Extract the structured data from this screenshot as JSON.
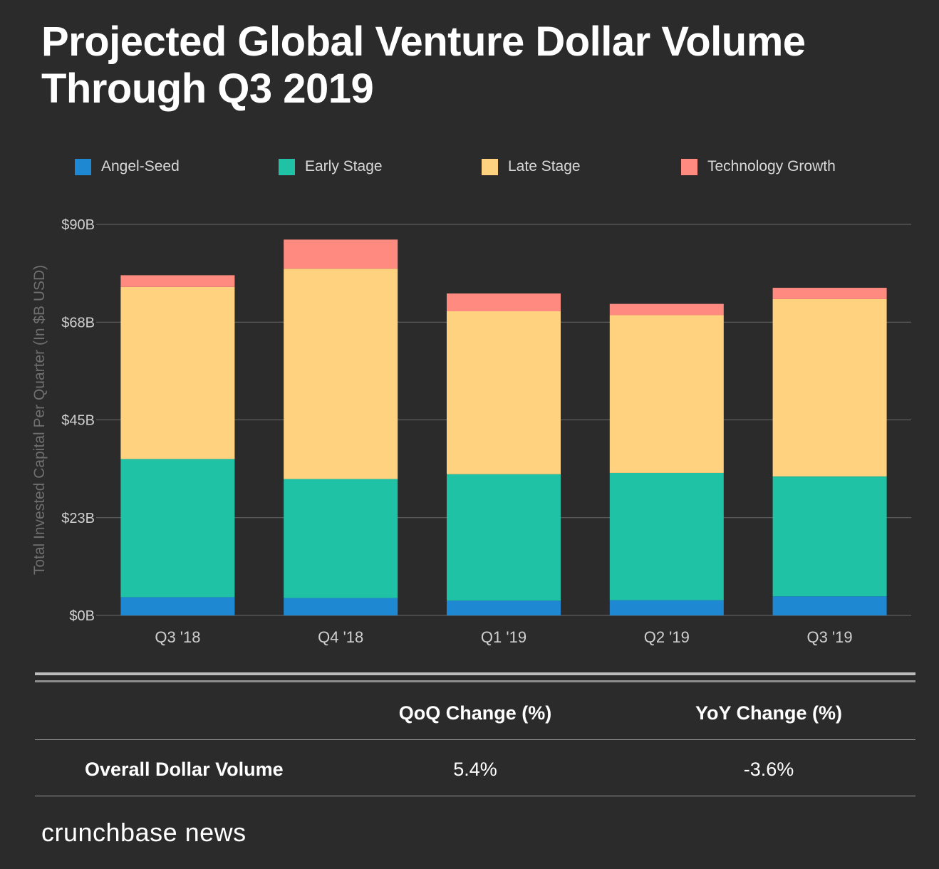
{
  "title": {
    "line1": "Projected Global Venture Dollar Volume",
    "line2": "Through Q3 2019"
  },
  "colors": {
    "background": "#2b2b2b",
    "angel_seed": "#1e88d2",
    "early_stage": "#20c2a5",
    "late_stage": "#ffd27f",
    "technology_growth": "#ff8a80",
    "grid": "#6a6a6a",
    "tick_text": "#d0d0d0"
  },
  "chart_data": {
    "type": "bar",
    "stacked": true,
    "categories": [
      "Q3 '18",
      "Q4 '18",
      "Q1 '19",
      "Q2 '19",
      "Q3 '19"
    ],
    "series": [
      {
        "name": "Angel-Seed",
        "color_key": "angel_seed",
        "values": [
          4.2,
          4.0,
          3.4,
          3.5,
          4.4
        ]
      },
      {
        "name": "Early Stage",
        "color_key": "early_stage",
        "values": [
          31.8,
          27.4,
          29.1,
          29.3,
          27.6
        ]
      },
      {
        "name": "Late Stage",
        "color_key": "late_stage",
        "values": [
          39.6,
          48.4,
          37.5,
          36.3,
          40.8
        ]
      },
      {
        "name": "Technology Growth",
        "color_key": "technology_growth",
        "values": [
          2.7,
          6.7,
          4.1,
          2.6,
          2.6
        ]
      }
    ],
    "title": "Projected Global Venture Dollar Volume Through Q3 2019",
    "xlabel": "",
    "ylabel": "Total Invested Capital Per Quarter (In $B USD)",
    "ylim": [
      0,
      90
    ],
    "yticks": [
      0,
      22.5,
      45,
      67.5,
      90
    ],
    "ytick_labels": [
      "$0B",
      "$23B",
      "$45B",
      "$68B",
      "$90B"
    ],
    "grid": true,
    "legend_position": "top"
  },
  "stats": {
    "headers": [
      "",
      "QoQ Change (%)",
      "YoY Change (%)"
    ],
    "row": {
      "label": "Overall Dollar Volume",
      "qoq": "5.4%",
      "yoy": "-3.6%"
    }
  },
  "brand": "crunchbase news"
}
